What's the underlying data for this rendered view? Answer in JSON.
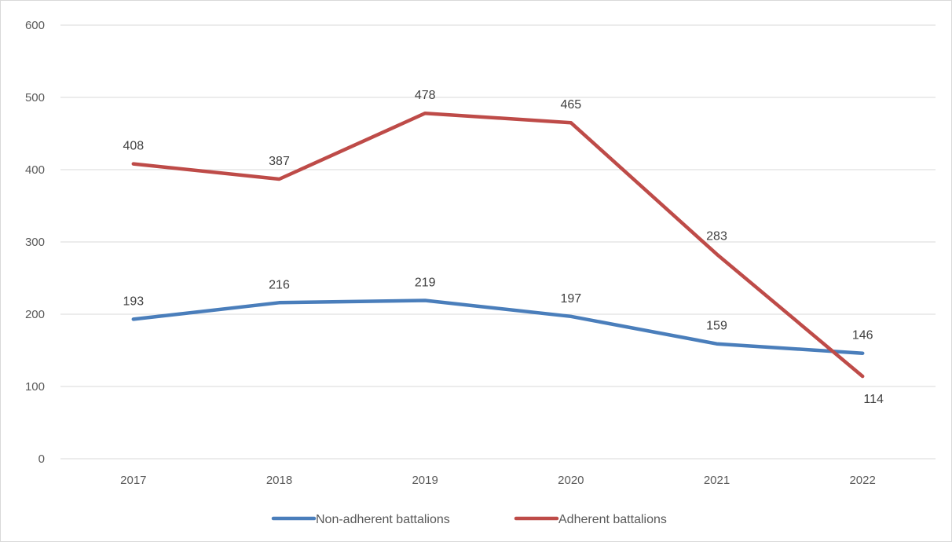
{
  "chart_data": {
    "type": "line",
    "title": "",
    "xlabel": "",
    "ylabel": "",
    "categories": [
      "2017",
      "2018",
      "2019",
      "2020",
      "2021",
      "2022"
    ],
    "series": [
      {
        "name": "Non-adherent battalions",
        "color": "#4a7ebb",
        "values": [
          193,
          216,
          219,
          197,
          159,
          146
        ]
      },
      {
        "name": "Adherent battalions",
        "color": "#be4b48",
        "values": [
          408,
          387,
          478,
          465,
          283,
          114
        ]
      }
    ],
    "ylim": [
      0,
      600
    ],
    "yticks": [
      0,
      100,
      200,
      300,
      400,
      500,
      600
    ],
    "grid": true,
    "legend_position": "bottom",
    "data_labels": true
  }
}
